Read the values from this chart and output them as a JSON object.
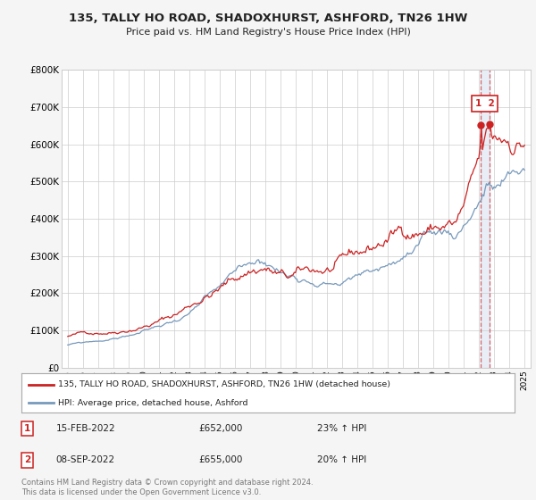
{
  "title": "135, TALLY HO ROAD, SHADOXHURST, ASHFORD, TN26 1HW",
  "subtitle": "Price paid vs. HM Land Registry's House Price Index (HPI)",
  "red_label": "135, TALLY HO ROAD, SHADOXHURST, ASHFORD, TN26 1HW (detached house)",
  "blue_label": "HPI: Average price, detached house, Ashford",
  "annotation1_date": "15-FEB-2022",
  "annotation1_price": "£652,000",
  "annotation1_hpi": "23% ↑ HPI",
  "annotation2_date": "08-SEP-2022",
  "annotation2_price": "£655,000",
  "annotation2_hpi": "20% ↑ HPI",
  "footer": "Contains HM Land Registry data © Crown copyright and database right 2024.\nThis data is licensed under the Open Government Licence v3.0.",
  "ylim": [
    0,
    800000
  ],
  "yticks": [
    0,
    100000,
    200000,
    300000,
    400000,
    500000,
    600000,
    700000,
    800000
  ],
  "ytick_labels": [
    "£0",
    "£100K",
    "£200K",
    "£300K",
    "£400K",
    "£500K",
    "£600K",
    "£700K",
    "£800K"
  ],
  "bg_color": "#f5f5f5",
  "plot_bg_color": "#ffffff",
  "red_color": "#cc2222",
  "blue_color": "#7799bb",
  "sale1_x": 2022.12,
  "sale2_x": 2022.68,
  "sale1_y": 652000,
  "sale2_y": 655000,
  "xmin": 1994.6,
  "xmax": 2025.4
}
